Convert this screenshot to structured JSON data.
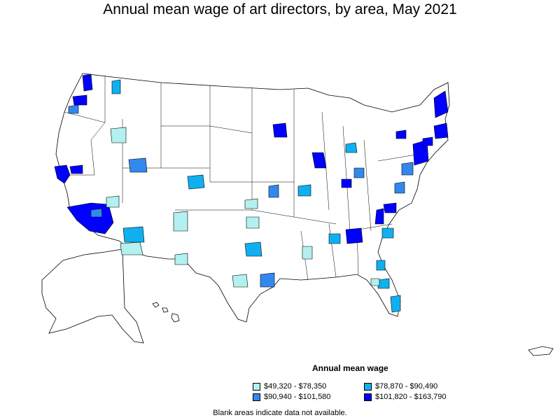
{
  "title": "Annual mean wage of art directors, by area, May 2021",
  "legend": {
    "title": "Annual mean wage",
    "items": [
      {
        "label": "$49,320 - $78,350",
        "color": "#b3f0f0"
      },
      {
        "label": "$90,940 - $101,580",
        "color": "#3388ee"
      },
      {
        "label": "$78,870 - $90,490",
        "color": "#10b0f0"
      },
      {
        "label": "$101,820 - $163,790",
        "color": "#0000ff"
      }
    ]
  },
  "note": "Blank areas indicate data not available."
}
